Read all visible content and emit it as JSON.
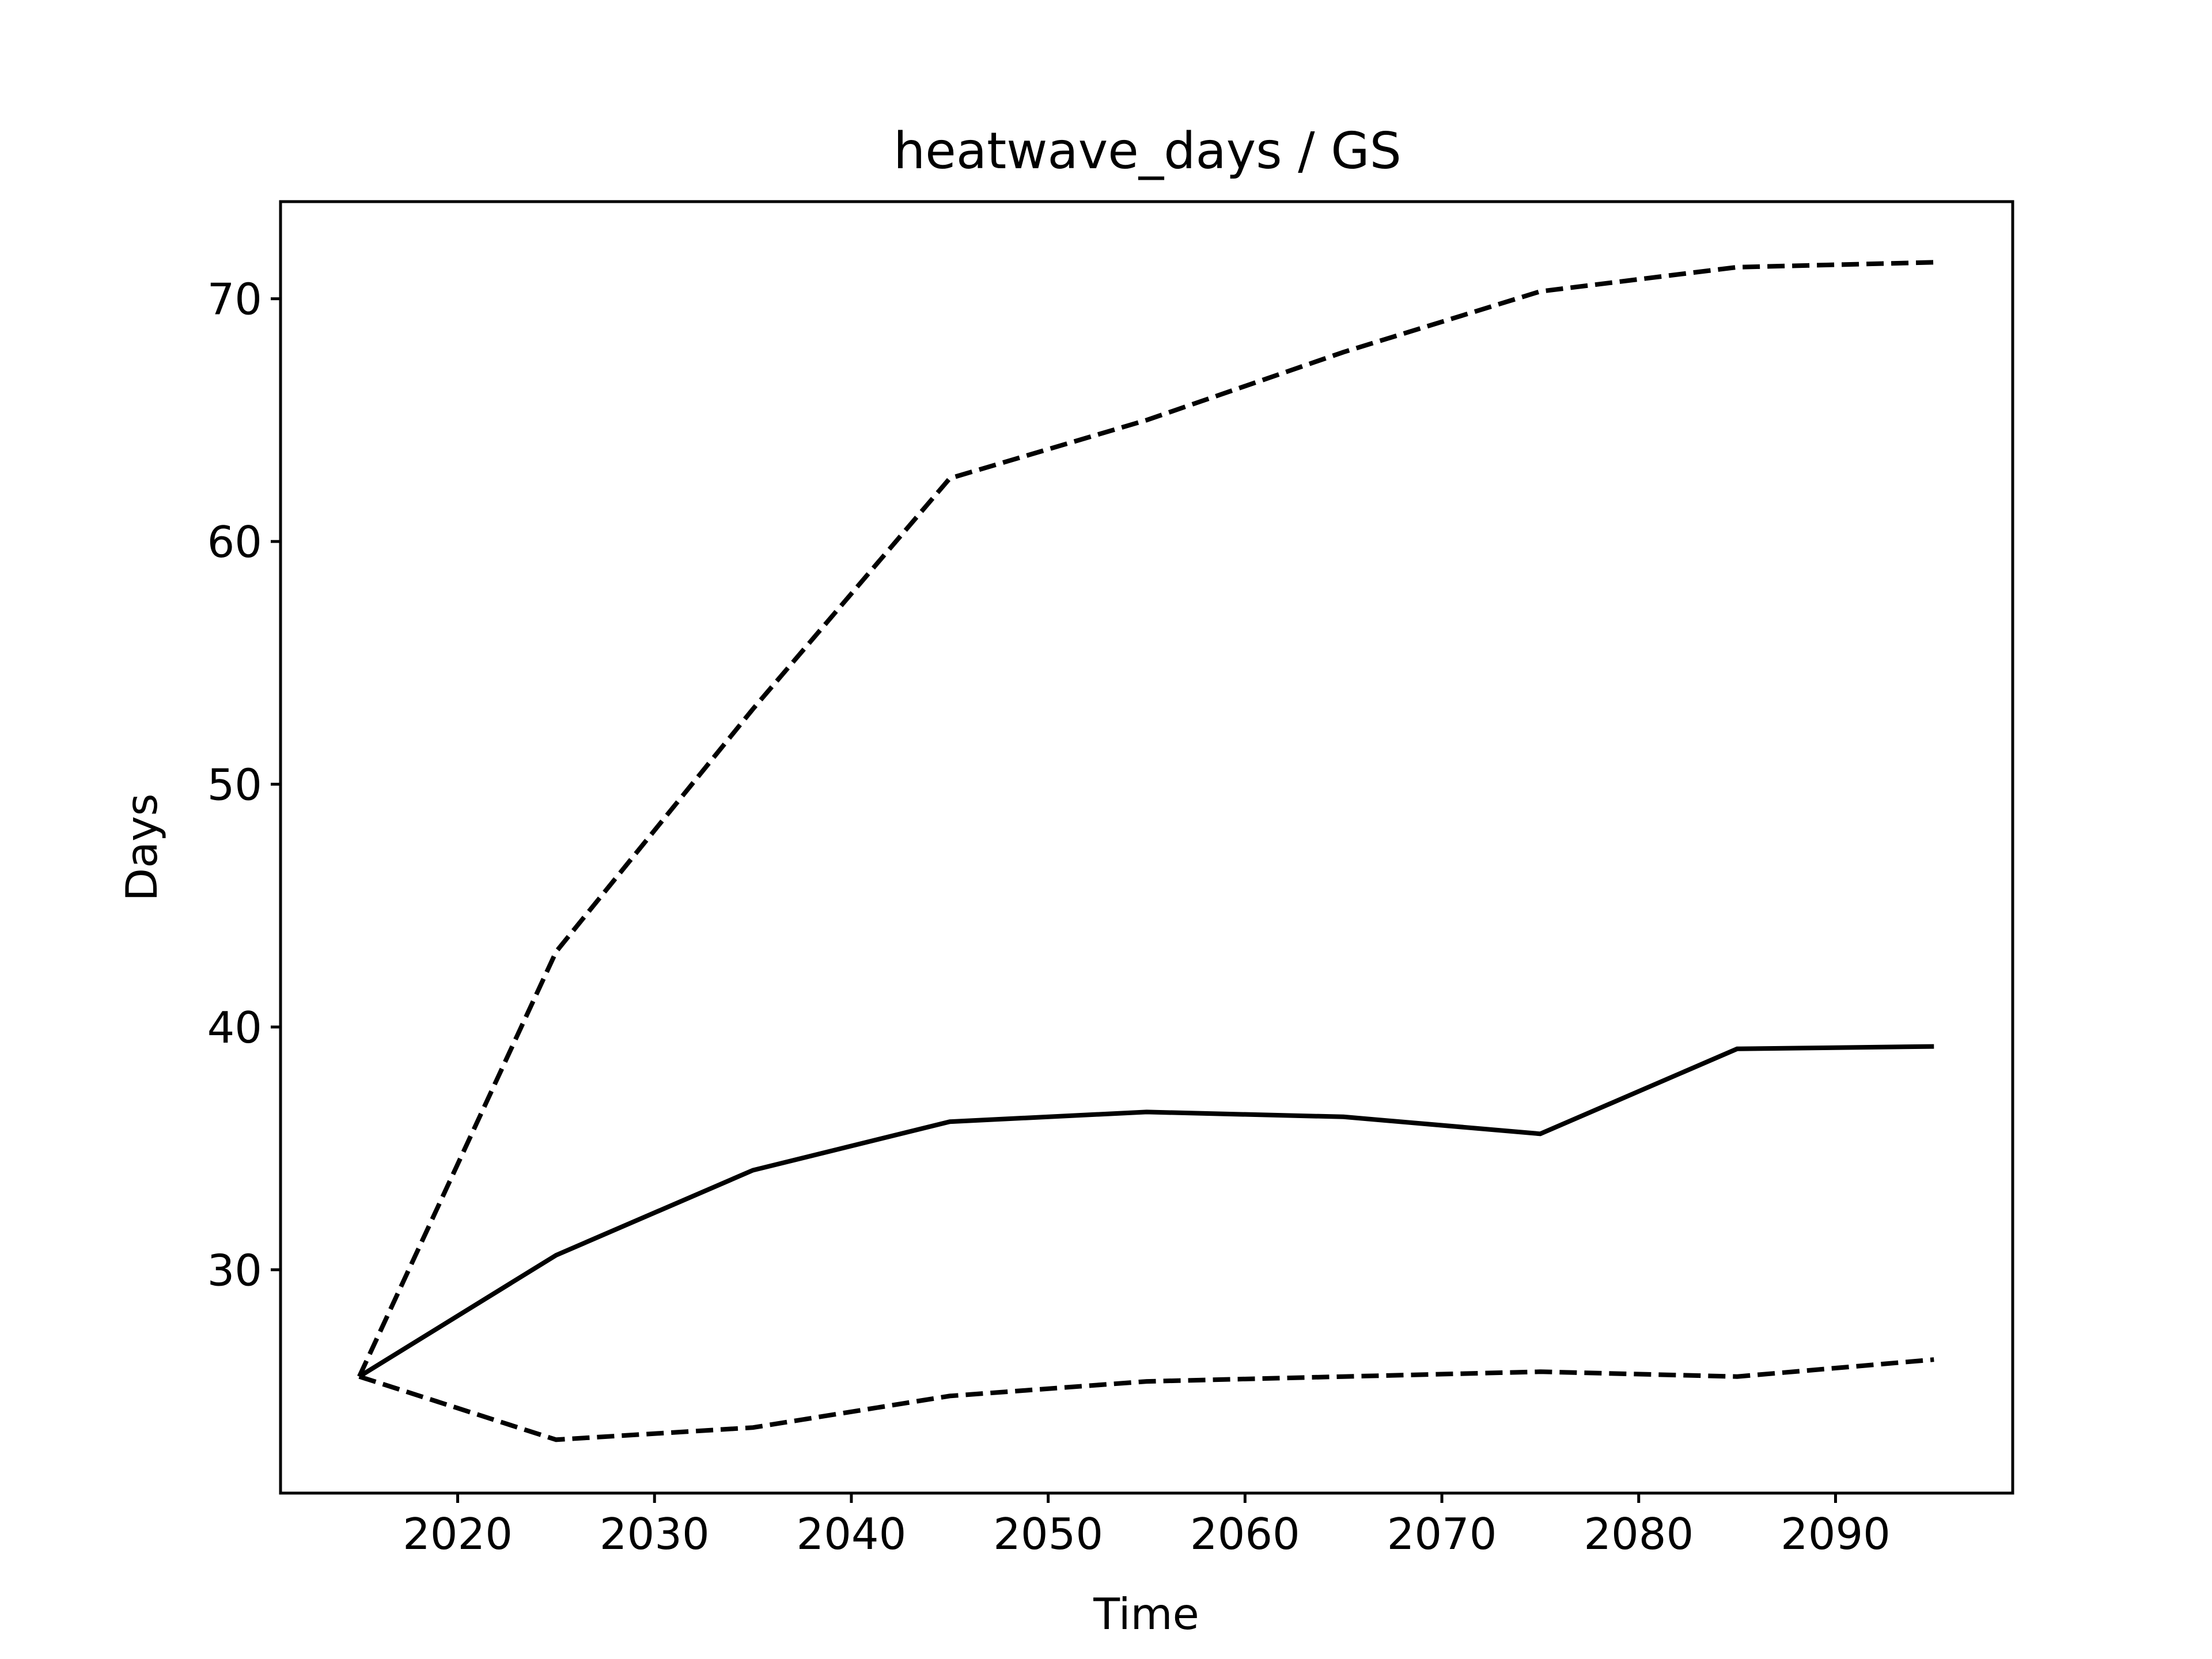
{
  "chart_data": {
    "type": "line",
    "title": "heatwave_days / GS",
    "xlabel": "Time",
    "ylabel": "Days",
    "x": [
      2015,
      2025,
      2035,
      2045,
      2055,
      2065,
      2075,
      2085,
      2095
    ],
    "xlim": [
      2011,
      2099
    ],
    "ylim": [
      20.8,
      74
    ],
    "xticks": [
      2020,
      2030,
      2040,
      2050,
      2060,
      2070,
      2080,
      2090
    ],
    "yticks": [
      30,
      40,
      50,
      60,
      70
    ],
    "grid": false,
    "series": [
      {
        "style": "solid",
        "color": "#000000",
        "values": [
          25.6,
          30.6,
          34.1,
          36.1,
          36.5,
          36.3,
          35.6,
          39.1,
          39.2
        ]
      },
      {
        "style": "dashed",
        "color": "#000000",
        "values": [
          25.6,
          43.1,
          53.1,
          62.6,
          65.0,
          67.8,
          70.3,
          71.3,
          71.5
        ]
      },
      {
        "style": "dashed",
        "color": "#000000",
        "values": [
          25.6,
          23.0,
          23.5,
          24.8,
          25.4,
          25.6,
          25.8,
          25.6,
          26.3
        ]
      }
    ]
  }
}
